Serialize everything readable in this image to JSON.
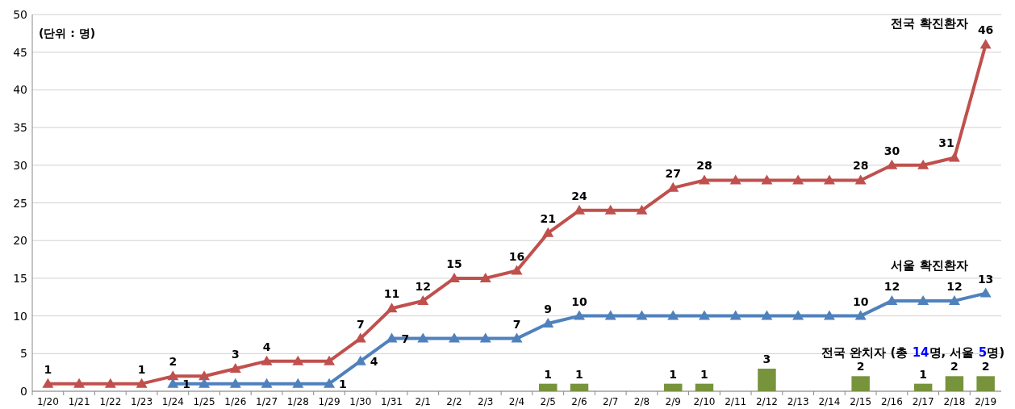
{
  "chart_data": {
    "type": "line",
    "annotations": [
      "(단위 : 명)"
    ],
    "categories": [
      "1/20",
      "1/21",
      "1/22",
      "1/23",
      "1/24",
      "1/25",
      "1/26",
      "1/27",
      "1/28",
      "1/29",
      "1/30",
      "1/31",
      "2/1",
      "2/2",
      "2/3",
      "2/4",
      "2/5",
      "2/6",
      "2/7",
      "2/8",
      "2/9",
      "2/10",
      "2/11",
      "2/12",
      "2/13",
      "2/14",
      "2/15",
      "2/16",
      "2/17",
      "2/18",
      "2/19"
    ],
    "series": [
      {
        "name": "전국 완치자 (총 14명, 서울 5명)",
        "type": "bar",
        "color": "#77933c",
        "values": [
          null,
          null,
          null,
          null,
          null,
          null,
          null,
          null,
          null,
          null,
          null,
          null,
          null,
          null,
          null,
          null,
          1,
          1,
          null,
          null,
          1,
          1,
          null,
          3,
          null,
          null,
          2,
          null,
          1,
          2,
          2
        ],
        "value_labels": [
          null,
          null,
          null,
          null,
          null,
          null,
          null,
          null,
          null,
          null,
          null,
          null,
          null,
          null,
          null,
          null,
          "1",
          "1",
          null,
          null,
          "1",
          "1",
          null,
          "3",
          null,
          null,
          "2",
          null,
          "1",
          "2",
          "2"
        ]
      },
      {
        "name": "전국 확진환자",
        "type": "line",
        "color": "#c0504d",
        "values": [
          1,
          1,
          1,
          1,
          2,
          2,
          3,
          4,
          4,
          4,
          7,
          11,
          12,
          15,
          15,
          16,
          21,
          24,
          24,
          24,
          27,
          28,
          28,
          28,
          28,
          28,
          28,
          30,
          30,
          31,
          46
        ],
        "value_labels": [
          "1",
          null,
          null,
          "1",
          "2",
          null,
          "3",
          "4",
          null,
          null,
          "7",
          "11",
          "12",
          "15",
          null,
          "16",
          "21",
          "24",
          null,
          null,
          "27",
          "28",
          null,
          null,
          null,
          null,
          "28",
          "30",
          null,
          "31",
          "46"
        ]
      },
      {
        "name": "서울 확진환자",
        "type": "line",
        "color": "#4f81bd",
        "values": [
          null,
          null,
          null,
          null,
          1,
          1,
          1,
          1,
          1,
          1,
          4,
          7,
          7,
          7,
          7,
          7,
          9,
          10,
          10,
          10,
          10,
          10,
          10,
          10,
          10,
          10,
          10,
          12,
          12,
          12,
          13
        ],
        "value_labels": [
          null,
          null,
          null,
          null,
          "1",
          null,
          null,
          null,
          null,
          "1",
          "4",
          "7",
          null,
          null,
          null,
          "7",
          "9",
          "10",
          null,
          null,
          null,
          null,
          null,
          null,
          null,
          null,
          "10",
          "12",
          null,
          "12",
          "13"
        ]
      }
    ],
    "ylim": [
      0,
      50
    ],
    "yticks": [
      0,
      5,
      10,
      15,
      20,
      25,
      30,
      35,
      40,
      45,
      50
    ],
    "grid": "y",
    "marker": "triangle"
  }
}
